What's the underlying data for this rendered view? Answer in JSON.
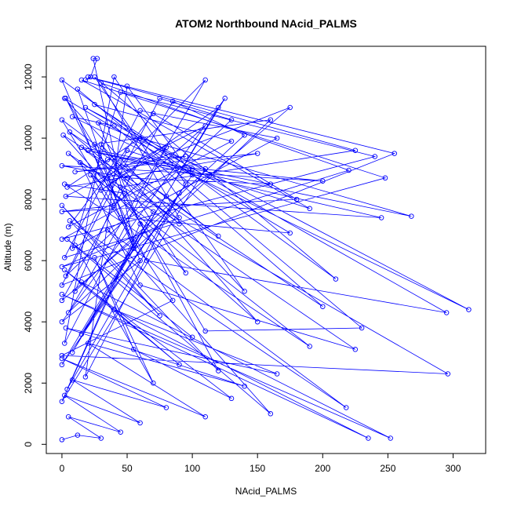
{
  "chart_data": {
    "type": "line",
    "title": "ATOM2 Northbound NAcid_PALMS",
    "xlabel": "NAcid_PALMS",
    "ylabel": "Altitude (m)",
    "xlim": [
      -12,
      325
    ],
    "ylim": [
      -300,
      13000
    ],
    "xticks": [
      0,
      50,
      100,
      150,
      200,
      250,
      300
    ],
    "yticks": [
      0,
      2000,
      4000,
      6000,
      8000,
      10000,
      12000
    ],
    "color": "#0000ff",
    "series": [
      {
        "marker": "open-circle",
        "x": [
          0,
          12,
          30,
          5,
          45,
          2,
          60,
          8,
          80,
          0,
          110,
          20,
          140,
          3,
          165,
          40,
          235,
          0,
          252,
          15,
          90,
          2,
          130,
          55,
          25,
          70,
          10,
          100,
          4,
          160,
          35,
          218,
          6,
          75,
          0,
          120,
          48,
          2,
          190,
          22,
          85,
          0,
          296,
          14,
          60,
          225,
          5,
          150,
          30,
          95,
          1,
          200,
          40,
          8,
          312,
          18,
          295,
          65,
          3,
          110,
          230,
          12,
          55,
          0,
          210,
          25,
          140,
          2,
          175,
          45,
          0,
          120,
          80,
          6,
          90,
          15,
          160,
          50,
          0,
          200,
          35,
          95,
          10,
          150,
          4,
          60,
          268,
          20,
          245,
          3,
          110,
          40,
          0,
          180,
          70,
          5,
          130,
          25,
          100,
          0,
          240,
          45,
          8,
          165,
          60,
          2,
          220,
          30,
          90,
          0,
          248,
          15,
          190,
          50,
          3,
          130,
          75,
          0,
          255,
          20,
          225,
          45,
          10,
          140,
          85,
          0,
          175,
          35,
          110,
          5,
          160,
          25,
          60,
          0,
          125,
          15,
          95,
          40,
          2,
          80,
          30,
          120,
          8,
          70,
          0,
          100,
          50,
          18,
          90,
          4,
          60,
          28,
          110,
          0,
          55,
          24,
          27,
          22,
          18
        ],
        "y": [
          150,
          300,
          200,
          900,
          400,
          1600,
          700,
          2100,
          1200,
          2800,
          900,
          3300,
          1900,
          3800,
          2300,
          4400,
          200,
          4900,
          200,
          5300,
          2600,
          5700,
          1500,
          3100,
          6100,
          2000,
          6500,
          3500,
          6700,
          1000,
          7000,
          1200,
          7300,
          4200,
          7800,
          2400,
          8200,
          8500,
          3200,
          8800,
          4700,
          2900,
          2300,
          9200,
          5200,
          3100,
          9500,
          4000,
          9800,
          5600,
          10100,
          4500,
          10400,
          10700,
          4400,
          11000,
          4300,
          6000,
          11300,
          3700,
          3800,
          11600,
          6400,
          11900,
          5400,
          12000,
          5000,
          11300,
          6900,
          7400,
          10600,
          6800,
          8100,
          10200,
          7200,
          9700,
          8500,
          8700,
          9100,
          8600,
          9300,
          9400,
          8900,
          9500,
          8400,
          10000,
          7450,
          9600,
          7400,
          8100,
          10400,
          7800,
          7600,
          8000,
          10800,
          7100,
          9900,
          11100,
          9000,
          6700,
          9400,
          11500,
          6400,
          10000,
          10900,
          6100,
          8950,
          11800,
          7400,
          5800,
          8700,
          11900,
          7700,
          9600,
          5500,
          10600,
          11300,
          5200,
          9500,
          12000,
          9600,
          8400,
          5000,
          10100,
          11200,
          4700,
          11000,
          8700,
          11900,
          4300,
          10600,
          9800,
          6000,
          4000,
          11300,
          3600,
          8500,
          12000,
          3300,
          9700,
          8300,
          11000,
          3000,
          7600,
          2600,
          8800,
          11700,
          2200,
          8200,
          1800,
          7200,
          10500,
          9000,
          1400,
          6600,
          12600,
          12600,
          12000,
          11900
        ]
      }
    ]
  }
}
